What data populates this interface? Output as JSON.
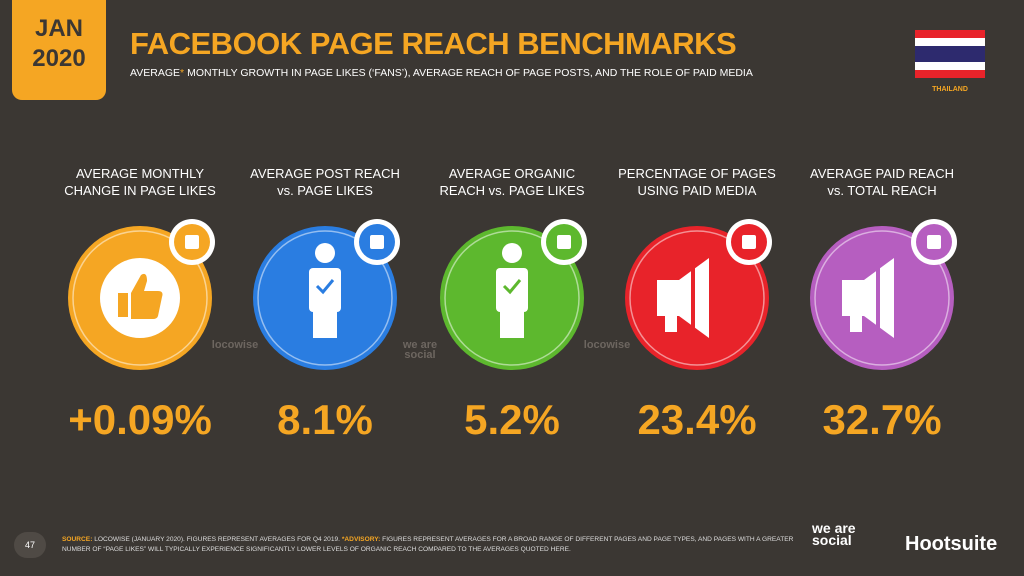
{
  "header": {
    "month": "JAN",
    "year": "2020",
    "title": "FACEBOOK PAGE REACH BENCHMARKS",
    "subtitle_lead": "AVERAGE",
    "subtitle_mark": "*",
    "subtitle": "MONTHLY GROWTH IN PAGE LIKES (‘FANS’), AVERAGE REACH OF PAGE POSTS, AND THE ROLE OF PAID MEDIA",
    "country": "THAILAND"
  },
  "cards": [
    {
      "label": [
        "AVERAGE MONTHLY",
        "CHANGE IN PAGE LIKES"
      ],
      "value": "+0.09%",
      "watermark": "locowise"
    },
    {
      "label": [
        "AVERAGE POST REACH",
        "vs. PAGE LIKES"
      ],
      "value": "8.1%",
      "watermark": "we are social"
    },
    {
      "label": [
        "AVERAGE ORGANIC",
        "REACH vs. PAGE LIKES"
      ],
      "value": "5.2%",
      "watermark": "locowise"
    },
    {
      "label": [
        "PERCENTAGE OF PAGES",
        "USING PAID MEDIA"
      ],
      "value": "23.4%"
    },
    {
      "label": [
        "AVERAGE PAID REACH",
        "vs. TOTAL REACH"
      ],
      "value": "32.7%"
    }
  ],
  "footer": {
    "page": "47",
    "source_label": "SOURCE:",
    "source": "LOCOWISE (JANUARY 2020). FIGURES REPRESENT AVERAGES FOR Q4 2019.",
    "advisory_label": "*ADVISORY:",
    "advisory": "FIGURES REPRESENT AVERAGES FOR A BROAD RANGE OF DIFFERENT PAGES AND PAGE TYPES, AND PAGES WITH A GREATER NUMBER OF “PAGE LIKES” WILL TYPICALLY EXPERIENCE SIGNIFICANTLY LOWER LEVELS OF ORGANIC REACH COMPARED TO THE AVERAGES QUOTED HERE.",
    "brand_1": "we are social",
    "brand_2": "Hootsuite"
  }
}
